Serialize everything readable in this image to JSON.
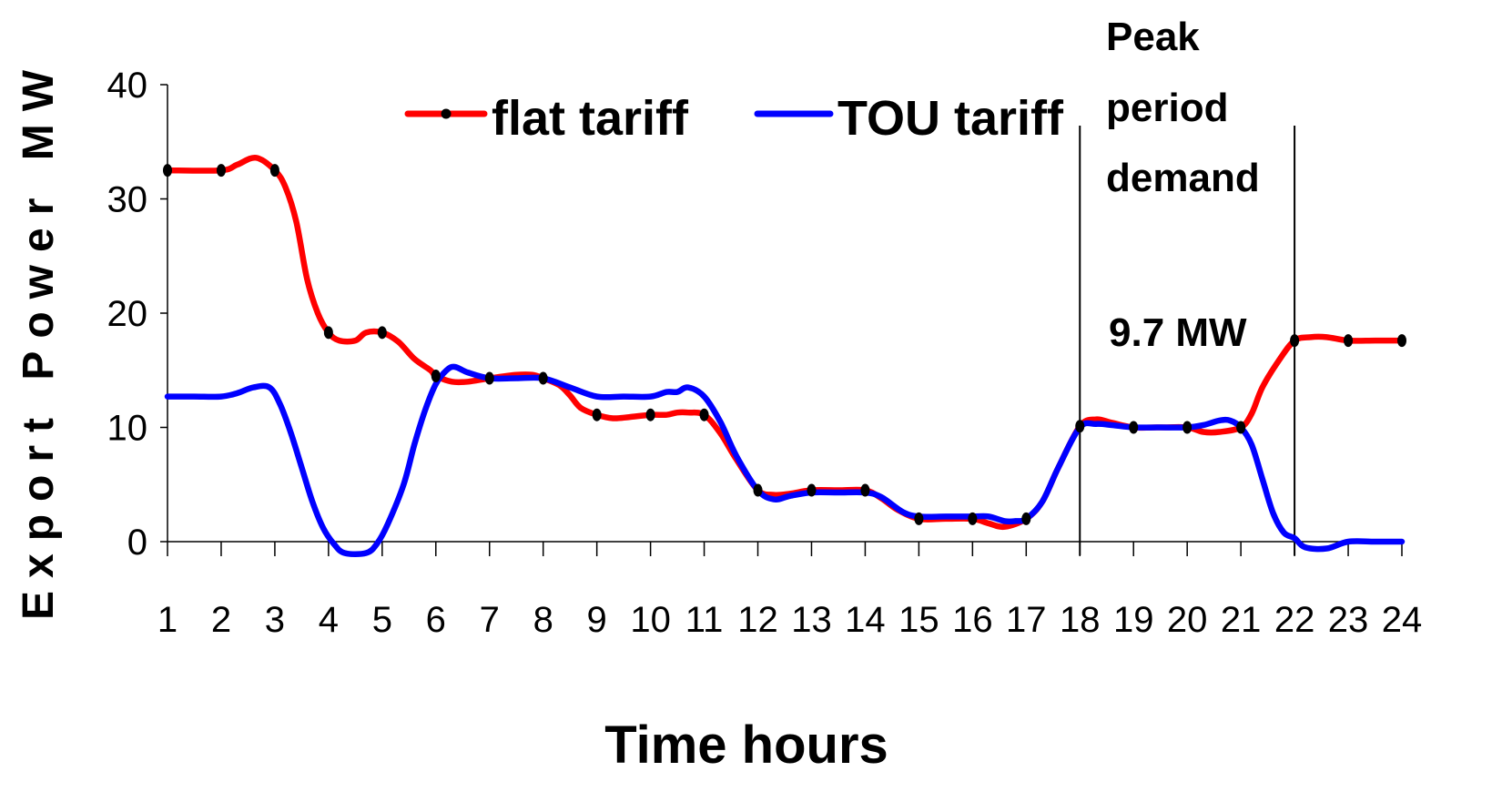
{
  "chart_data": {
    "type": "line",
    "title": "",
    "xlabel": "Time hours",
    "ylabel": "Export Power MW",
    "x": [
      1,
      2,
      3,
      4,
      5,
      6,
      7,
      8,
      9,
      10,
      11,
      12,
      13,
      14,
      15,
      16,
      17,
      18,
      19,
      20,
      21,
      22,
      23,
      24
    ],
    "x_ticks": [
      "1",
      "2",
      "3",
      "4",
      "5",
      "6",
      "7",
      "8",
      "9",
      "10",
      "11",
      "12",
      "13",
      "14",
      "15",
      "16",
      "17",
      "18",
      "19",
      "20",
      "21",
      "22",
      "23",
      "24"
    ],
    "y_ticks": [
      "0",
      "10",
      "20",
      "30",
      "40"
    ],
    "xlim": [
      1,
      24
    ],
    "ylim": [
      0,
      40
    ],
    "grid": false,
    "legend_position": "top",
    "series": [
      {
        "name": "flat tariff",
        "color": "#ff0000",
        "marker": "dot",
        "values": [
          32.5,
          32.5,
          32.5,
          18.3,
          18.3,
          14.5,
          14.3,
          14.3,
          11.1,
          11.1,
          11.1,
          4.5,
          4.5,
          4.5,
          2.0,
          2.0,
          2.0,
          10.1,
          10.0,
          10.0,
          10.0,
          17.6,
          17.6,
          17.6
        ],
        "path": [
          [
            1,
            32.5
          ],
          [
            2,
            32.5
          ],
          [
            2.3,
            33
          ],
          [
            2.65,
            33.6
          ],
          [
            3,
            32.5
          ],
          [
            3.2,
            31
          ],
          [
            3.4,
            28
          ],
          [
            3.6,
            23
          ],
          [
            3.8,
            20
          ],
          [
            4,
            18.3
          ],
          [
            4.2,
            17.6
          ],
          [
            4.5,
            17.6
          ],
          [
            4.7,
            18.3
          ],
          [
            5,
            18.3
          ],
          [
            5.3,
            17.5
          ],
          [
            5.6,
            16
          ],
          [
            5.9,
            15
          ],
          [
            6,
            14.5
          ],
          [
            6.3,
            14.0
          ],
          [
            6.6,
            14.0
          ],
          [
            7,
            14.3
          ],
          [
            7.5,
            14.6
          ],
          [
            7.8,
            14.6
          ],
          [
            8,
            14.3
          ],
          [
            8.3,
            13.7
          ],
          [
            8.5,
            12.8
          ],
          [
            8.7,
            11.7
          ],
          [
            9,
            11.1
          ],
          [
            9.3,
            10.8
          ],
          [
            9.6,
            10.9
          ],
          [
            10,
            11.1
          ],
          [
            10.3,
            11.1
          ],
          [
            10.5,
            11.3
          ],
          [
            10.7,
            11.3
          ],
          [
            11,
            11.1
          ],
          [
            11.3,
            9.5
          ],
          [
            11.6,
            7.2
          ],
          [
            12,
            4.5
          ],
          [
            12.3,
            4.1
          ],
          [
            12.6,
            4.2
          ],
          [
            13,
            4.5
          ],
          [
            13.5,
            4.5
          ],
          [
            14,
            4.5
          ],
          [
            14.3,
            3.8
          ],
          [
            14.6,
            2.8
          ],
          [
            15,
            2.0
          ],
          [
            15.5,
            2.0
          ],
          [
            16,
            2.0
          ],
          [
            16.3,
            1.6
          ],
          [
            16.6,
            1.3
          ],
          [
            17,
            2.0
          ],
          [
            17.3,
            3.5
          ],
          [
            17.6,
            6.5
          ],
          [
            18,
            10.1
          ],
          [
            18.3,
            10.7
          ],
          [
            18.6,
            10.4
          ],
          [
            19,
            10.0
          ],
          [
            19.5,
            10.0
          ],
          [
            20,
            10.0
          ],
          [
            20.3,
            9.6
          ],
          [
            20.6,
            9.6
          ],
          [
            21,
            10.0
          ],
          [
            21.2,
            11.2
          ],
          [
            21.4,
            13.5
          ],
          [
            21.7,
            15.8
          ],
          [
            22,
            17.6
          ],
          [
            22.3,
            17.9
          ],
          [
            22.6,
            17.9
          ],
          [
            23,
            17.6
          ],
          [
            23.5,
            17.6
          ],
          [
            24,
            17.6
          ]
        ]
      },
      {
        "name": "TOU tariff",
        "color": "#0000ff",
        "values": [
          12.7,
          12.7,
          12.5,
          0.0,
          -0.5,
          13.5,
          14.3,
          14.3,
          12.7,
          12.7,
          12.7,
          4.5,
          4.3,
          4.3,
          2.2,
          2.2,
          2.0,
          10.1,
          10.2,
          10.0,
          10.2,
          0.3,
          0.0,
          0.0
        ],
        "path": [
          [
            1,
            12.7
          ],
          [
            1.5,
            12.7
          ],
          [
            2,
            12.7
          ],
          [
            2.3,
            13.0
          ],
          [
            2.6,
            13.5
          ],
          [
            2.9,
            13.5
          ],
          [
            3.1,
            12.0
          ],
          [
            3.3,
            9.5
          ],
          [
            3.5,
            6.5
          ],
          [
            3.7,
            3.5
          ],
          [
            3.9,
            1.2
          ],
          [
            4.1,
            -0.2
          ],
          [
            4.3,
            -1.0
          ],
          [
            4.7,
            -1.0
          ],
          [
            4.9,
            -0.2
          ],
          [
            5.1,
            1.5
          ],
          [
            5.4,
            5.0
          ],
          [
            5.6,
            8.5
          ],
          [
            5.8,
            11.5
          ],
          [
            6,
            13.8
          ],
          [
            6.2,
            15.0
          ],
          [
            6.35,
            15.3
          ],
          [
            6.6,
            14.8
          ],
          [
            7,
            14.3
          ],
          [
            7.5,
            14.3
          ],
          [
            8,
            14.3
          ],
          [
            8.5,
            13.5
          ],
          [
            9,
            12.7
          ],
          [
            9.5,
            12.7
          ],
          [
            10,
            12.7
          ],
          [
            10.3,
            13.1
          ],
          [
            10.5,
            13.1
          ],
          [
            10.7,
            13.5
          ],
          [
            11,
            12.7
          ],
          [
            11.3,
            10.5
          ],
          [
            11.6,
            7.5
          ],
          [
            12,
            4.5
          ],
          [
            12.3,
            3.7
          ],
          [
            12.6,
            4.0
          ],
          [
            13,
            4.3
          ],
          [
            13.5,
            4.3
          ],
          [
            14,
            4.3
          ],
          [
            14.3,
            3.9
          ],
          [
            14.7,
            2.6
          ],
          [
            15,
            2.2
          ],
          [
            15.5,
            2.2
          ],
          [
            16,
            2.2
          ],
          [
            16.3,
            2.2
          ],
          [
            16.6,
            1.8
          ],
          [
            16.8,
            1.8
          ],
          [
            17,
            2.0
          ],
          [
            17.3,
            3.5
          ],
          [
            17.6,
            6.5
          ],
          [
            18,
            10.0
          ],
          [
            18.3,
            10.3
          ],
          [
            18.6,
            10.2
          ],
          [
            19,
            10.0
          ],
          [
            19.5,
            10.0
          ],
          [
            20,
            10.0
          ],
          [
            20.3,
            10.2
          ],
          [
            20.6,
            10.6
          ],
          [
            20.8,
            10.6
          ],
          [
            21,
            10.0
          ],
          [
            21.2,
            8.5
          ],
          [
            21.4,
            5.5
          ],
          [
            21.6,
            2.5
          ],
          [
            21.8,
            0.8
          ],
          [
            22,
            0.3
          ],
          [
            22.2,
            -0.5
          ],
          [
            22.6,
            -0.6
          ],
          [
            23,
            0.0
          ],
          [
            23.5,
            0.0
          ],
          [
            24,
            0.0
          ]
        ]
      }
    ],
    "annotations": [
      {
        "text_lines": [
          "Peak",
          "period",
          "demand"
        ]
      },
      {
        "text": "9.7 MW"
      }
    ],
    "peak_period_bounds": [
      18,
      22
    ]
  }
}
